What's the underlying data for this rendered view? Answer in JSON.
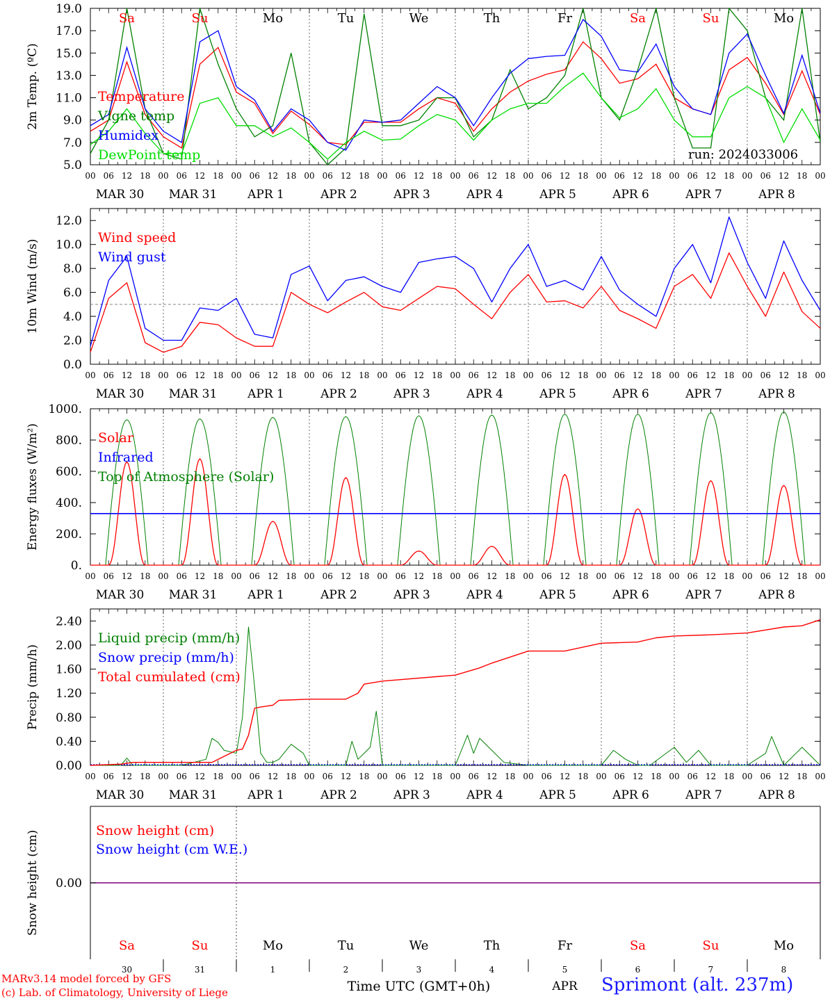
{
  "run_label": "run: 2024033006",
  "credits": {
    "line1": "MARv3.14 model forced by GFS",
    "line2": "(c) Lab. of Climatology, University of Liege"
  },
  "station": "Sprimont (alt. 237m)",
  "time_axis": {
    "xlabel": "Time UTC (GMT+0h)",
    "month": "APR",
    "hour_ticks": [
      "00",
      "06",
      "12",
      "18"
    ],
    "days": [
      {
        "weekday": "Sa",
        "date_label": "MAR 30",
        "day_number": "30",
        "weekend": true
      },
      {
        "weekday": "Su",
        "date_label": "MAR 31",
        "day_number": "31",
        "weekend": true
      },
      {
        "weekday": "Mo",
        "date_label": "APR  1",
        "day_number": "1",
        "weekend": false
      },
      {
        "weekday": "Tu",
        "date_label": "APR  2",
        "day_number": "2",
        "weekend": false
      },
      {
        "weekday": "We",
        "date_label": "APR  3",
        "day_number": "3",
        "weekend": false
      },
      {
        "weekday": "Th",
        "date_label": "APR  4",
        "day_number": "4",
        "weekend": false
      },
      {
        "weekday": "Fr",
        "date_label": "APR  5",
        "day_number": "5",
        "weekend": false
      },
      {
        "weekday": "Sa",
        "date_label": "APR  6",
        "day_number": "6",
        "weekend": true
      },
      {
        "weekday": "Su",
        "date_label": "APR  7",
        "day_number": "7",
        "weekend": true
      },
      {
        "weekday": "Mo",
        "date_label": "APR  8",
        "day_number": "8",
        "weekend": false
      }
    ]
  },
  "colors": {
    "red": "#ff0000",
    "green": "#008000",
    "blue": "#0000ff",
    "light_green": "#00dd00",
    "weekend": "#ff0000",
    "grid": "#666666",
    "snow_line": "#7f007f"
  },
  "chart_data": [
    {
      "id": "temperature",
      "type": "line",
      "ylabel": "2m Temp. (ºC)",
      "ylim": [
        5.0,
        19.0
      ],
      "yticks": [
        5.0,
        7.0,
        9.0,
        11.0,
        13.0,
        15.0,
        17.0,
        19.0
      ],
      "ytick_labels": [
        "5.0",
        "7.0",
        "9.0",
        "11.0",
        "13.0",
        "15.0",
        "17.0",
        "19.0"
      ],
      "x_unit": "hours since MAR 30 00 UTC",
      "series": [
        {
          "name": "Temperature",
          "color": "red",
          "x": [
            0,
            6,
            12,
            18,
            24,
            30,
            36,
            42,
            48,
            54,
            60,
            66,
            72,
            78,
            84,
            90,
            96,
            102,
            108,
            114,
            120,
            126,
            132,
            138,
            144,
            150,
            156,
            162,
            168,
            174,
            180,
            186,
            192,
            198,
            204,
            210,
            216,
            222,
            228,
            234,
            240
          ],
          "y": [
            8,
            9,
            14.2,
            9.5,
            7.5,
            6.5,
            14,
            15.5,
            11.5,
            10.5,
            7.8,
            9.8,
            8.6,
            7,
            6.8,
            8.8,
            8.8,
            8.8,
            10,
            11,
            10.5,
            8,
            10,
            11.5,
            12.5,
            13.1,
            13.5,
            16,
            14.5,
            12.3,
            12.7,
            14,
            11,
            10,
            9.5,
            13.5,
            14.6,
            12.3,
            9.5,
            13.4,
            9.5
          ]
        },
        {
          "name": "Vigne temp",
          "color": "green",
          "x": [
            0,
            6,
            12,
            18,
            24,
            30,
            36,
            42,
            48,
            54,
            60,
            66,
            72,
            78,
            84,
            90,
            96,
            102,
            108,
            114,
            120,
            126,
            132,
            138,
            144,
            150,
            156,
            162,
            168,
            174,
            180,
            186,
            192,
            198,
            204,
            210,
            216,
            222,
            228,
            234,
            240
          ],
          "y": [
            6,
            9,
            19,
            10,
            6,
            5.5,
            19,
            14,
            10,
            7.5,
            8.5,
            15,
            7,
            5,
            6.5,
            18.5,
            8.5,
            8.5,
            9,
            11,
            11,
            7.5,
            9,
            13.5,
            10,
            11,
            13,
            19,
            11,
            9,
            13.5,
            19,
            11,
            6.5,
            6.5,
            19,
            17,
            11,
            9,
            19,
            7
          ]
        },
        {
          "name": "Humidex",
          "color": "blue",
          "x": [
            0,
            6,
            12,
            18,
            24,
            30,
            36,
            42,
            48,
            54,
            60,
            66,
            72,
            78,
            84,
            90,
            96,
            102,
            108,
            114,
            120,
            126,
            132,
            138,
            144,
            150,
            156,
            162,
            168,
            174,
            180,
            186,
            192,
            198,
            204,
            210,
            216,
            222,
            228,
            234,
            240
          ],
          "y": [
            8.5,
            9.5,
            15.5,
            10,
            8,
            7,
            16,
            17,
            12,
            10.8,
            8,
            10,
            9,
            7,
            6.3,
            9,
            8.8,
            9,
            10.5,
            12,
            11,
            8.5,
            11,
            13.2,
            14.5,
            14.7,
            14.8,
            18,
            16.5,
            13.5,
            13.3,
            15.8,
            12,
            10,
            9.5,
            15,
            16.7,
            13,
            9.6,
            14.8,
            9.6
          ]
        },
        {
          "name": "DewPoint temp",
          "color": "light_green",
          "x": [
            0,
            6,
            12,
            18,
            24,
            30,
            36,
            42,
            48,
            54,
            60,
            66,
            72,
            78,
            84,
            90,
            96,
            102,
            108,
            114,
            120,
            126,
            132,
            138,
            144,
            150,
            156,
            162,
            168,
            174,
            180,
            186,
            192,
            198,
            204,
            210,
            216,
            222,
            228,
            234,
            240
          ],
          "y": [
            6.8,
            8,
            10,
            7.8,
            6,
            6,
            10.5,
            11,
            8.5,
            8.5,
            7.5,
            8.3,
            7,
            5.5,
            7,
            8,
            7.2,
            7.3,
            8.5,
            9.5,
            9,
            7.2,
            9,
            10,
            10.5,
            10.5,
            12,
            13.2,
            11,
            9.2,
            10,
            11.8,
            9,
            7.5,
            7.5,
            11,
            12,
            11,
            7,
            10,
            7.2
          ]
        }
      ]
    },
    {
      "id": "wind",
      "type": "line",
      "ylabel": "10m Wind (m/s)",
      "ylim": [
        0.0,
        13.0
      ],
      "yticks": [
        0.0,
        2.0,
        4.0,
        6.0,
        8.0,
        10.0,
        12.0
      ],
      "ytick_labels": [
        "0.0",
        "2.0",
        "4.0",
        "6.0",
        "8.0",
        "10.0",
        "12.0"
      ],
      "reference_line": 5.0,
      "series": [
        {
          "name": "Wind speed",
          "color": "red",
          "x": [
            0,
            6,
            12,
            18,
            24,
            30,
            36,
            42,
            48,
            54,
            60,
            66,
            72,
            78,
            84,
            90,
            96,
            102,
            108,
            114,
            120,
            126,
            132,
            138,
            144,
            150,
            156,
            162,
            168,
            174,
            180,
            186,
            192,
            198,
            204,
            210,
            216,
            222,
            228,
            234,
            240
          ],
          "y": [
            1,
            5.5,
            6.8,
            1.8,
            1,
            1.5,
            3.5,
            3.3,
            2.2,
            1.5,
            1.5,
            6,
            5,
            4.3,
            5.2,
            6,
            4.8,
            4.5,
            5.5,
            6.5,
            6.3,
            5,
            3.8,
            6,
            7.5,
            5.2,
            5.3,
            4.7,
            6.5,
            4.5,
            3.8,
            3,
            6.5,
            7.5,
            5.5,
            9.3,
            6.5,
            4,
            7.7,
            4.4,
            3
          ]
        },
        {
          "name": "Wind gust",
          "color": "blue",
          "x": [
            0,
            6,
            12,
            18,
            24,
            30,
            36,
            42,
            48,
            54,
            60,
            66,
            72,
            78,
            84,
            90,
            96,
            102,
            108,
            114,
            120,
            126,
            132,
            138,
            144,
            150,
            156,
            162,
            168,
            174,
            180,
            186,
            192,
            198,
            204,
            210,
            216,
            222,
            228,
            234,
            240
          ],
          "y": [
            1.5,
            7,
            9,
            3,
            2,
            2,
            4.7,
            4.5,
            5.5,
            2.5,
            2.2,
            7.5,
            8.2,
            5.3,
            7,
            7.3,
            6.5,
            6,
            8.5,
            8.8,
            9,
            8,
            5.2,
            8,
            10,
            6.5,
            7,
            6.2,
            9,
            6.2,
            5,
            4,
            8,
            10,
            6.8,
            12.3,
            8.5,
            5.5,
            10.3,
            7,
            4.5
          ]
        }
      ]
    },
    {
      "id": "energy",
      "type": "line",
      "ylabel": "Energy fluxes (W/m²)",
      "ylim": [
        0,
        1000
      ],
      "yticks": [
        0,
        200,
        400,
        600,
        800,
        1000
      ],
      "ytick_labels": [
        "0.",
        "200.",
        "400.",
        "600.",
        "800.",
        "1000."
      ],
      "series": [
        {
          "name": "Solar",
          "color": "red",
          "daily_peaks": [
            660,
            680,
            280,
            560,
            90,
            120,
            580,
            360,
            540,
            510
          ]
        },
        {
          "name": "Infrared",
          "color": "blue",
          "baseline": 330
        },
        {
          "name": "Top of Atmosphere (Solar)",
          "color": "green",
          "daily_peaks": [
            930,
            935,
            945,
            950,
            955,
            960,
            965,
            965,
            975,
            980
          ],
          "day_start_hour": 5,
          "day_end_hour": 19
        }
      ]
    },
    {
      "id": "precip",
      "type": "line",
      "ylabel": "Precip (mm/h)",
      "ylim": [
        0.0,
        2.6
      ],
      "yticks": [
        0.0,
        0.4,
        0.8,
        1.2,
        1.6,
        2.0,
        2.4
      ],
      "ytick_labels": [
        "0.00",
        "0.40",
        "0.80",
        "1.20",
        "1.60",
        "2.00",
        "2.40"
      ],
      "series": [
        {
          "name": "Liquid precip (mm/h)",
          "color": "green",
          "x": [
            0,
            10,
            12,
            14,
            30,
            38,
            40,
            42,
            44,
            48,
            50,
            52,
            54,
            56,
            58,
            60,
            62,
            66,
            70,
            72,
            84,
            86,
            88,
            92,
            94,
            96,
            120,
            124,
            126,
            128,
            132,
            136,
            144,
            168,
            172,
            176,
            180,
            184,
            192,
            196,
            200,
            204,
            216,
            222,
            224,
            228,
            234,
            240
          ],
          "y": [
            0,
            0,
            0.12,
            0,
            0,
            0.1,
            0.45,
            0.38,
            0.25,
            0.2,
            0.8,
            2.3,
            1.3,
            0.2,
            0.05,
            0.05,
            0.1,
            0.35,
            0.2,
            0,
            0,
            0.4,
            0.1,
            0.3,
            0.9,
            0,
            0,
            0.5,
            0.2,
            0.45,
            0.25,
            0.05,
            0,
            0,
            0.25,
            0.1,
            0,
            0,
            0.3,
            0.05,
            0.25,
            0,
            0,
            0.2,
            0.48,
            0,
            0.3,
            0
          ]
        },
        {
          "name": "Snow precip (mm/h)",
          "color": "blue",
          "baseline": 0
        },
        {
          "name": "Total cumulated (cm)",
          "color": "red",
          "x": [
            0,
            10,
            14,
            40,
            44,
            48,
            50,
            52,
            54,
            56,
            60,
            62,
            72,
            84,
            88,
            90,
            96,
            120,
            128,
            132,
            144,
            156,
            168,
            180,
            186,
            192,
            204,
            216,
            228,
            234,
            240
          ],
          "y": [
            0,
            0.02,
            0.05,
            0.05,
            0.15,
            0.25,
            0.27,
            0.5,
            0.95,
            0.97,
            1.0,
            1.08,
            1.1,
            1.1,
            1.2,
            1.35,
            1.4,
            1.5,
            1.62,
            1.7,
            1.9,
            1.9,
            2.03,
            2.05,
            2.12,
            2.15,
            2.17,
            2.2,
            2.3,
            2.32,
            2.42
          ]
        }
      ]
    },
    {
      "id": "snow",
      "type": "line",
      "ylabel": "Snow height (cm)",
      "yticks": [
        0.0
      ],
      "ytick_labels": [
        "0.00"
      ],
      "series": [
        {
          "name": "Snow height (cm)",
          "color": "red",
          "constant": 0
        },
        {
          "name": "Snow height (cm W.E.)",
          "color": "blue",
          "constant": 0
        }
      ]
    }
  ]
}
